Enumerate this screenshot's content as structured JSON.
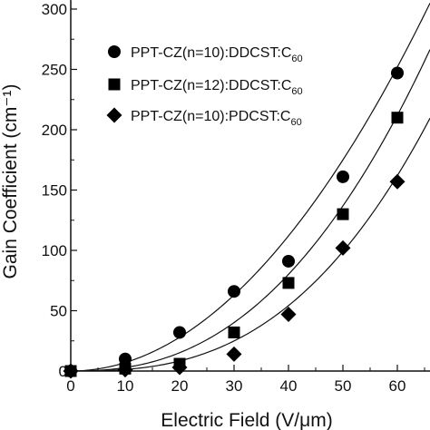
{
  "chart_data": {
    "type": "scatter",
    "xlabel": "Electric Field (V/μm)",
    "ylabel": "Gain Coefficient (cm⁻¹)",
    "xlim": [
      0,
      60
    ],
    "ylim": [
      0,
      300
    ],
    "x_ticks": [
      0,
      10,
      20,
      30,
      40,
      50,
      60
    ],
    "y_ticks": [
      0,
      50,
      100,
      150,
      200,
      250,
      300
    ],
    "grid": false,
    "legend_position": "top-left",
    "series": [
      {
        "name": "PPT-CZ(n=10):DDCST:C60",
        "label_main": "PPT-CZ(n=10):DDCST:C",
        "label_sub": "60",
        "marker": "circle",
        "x": [
          0,
          10,
          20,
          30,
          40,
          50,
          60
        ],
        "y": [
          0,
          10,
          32,
          66,
          91,
          161,
          247
        ],
        "fit_exponent": 2.0,
        "fit_y_at_60": 252
      },
      {
        "name": "PPT-CZ(n=12):DDCST:C60",
        "label_main": "PPT-CZ(n=12):DDCST:C",
        "label_sub": "60",
        "marker": "square",
        "x": [
          0,
          10,
          20,
          30,
          40,
          50,
          60
        ],
        "y": [
          0,
          2,
          6,
          32,
          73,
          130,
          210
        ],
        "fit_exponent": 2.4,
        "fit_y_at_60": 212
      },
      {
        "name": "PPT-CZ(n=10):PDCST:C60",
        "label_main": "PPT-CZ(n=10):PDCST:C",
        "label_sub": "60",
        "marker": "diamond",
        "x": [
          0,
          10,
          20,
          30,
          40,
          50,
          60
        ],
        "y": [
          0,
          1,
          3,
          14,
          47,
          102,
          157
        ],
        "fit_exponent": 2.7,
        "fit_y_at_60": 162
      }
    ]
  }
}
